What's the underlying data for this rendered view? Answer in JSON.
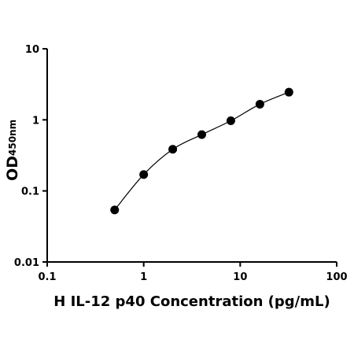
{
  "chart_data": {
    "type": "scatter",
    "x_label": "H IL-12 p40 Concentration (pg/mL)",
    "y_label": "OD",
    "y_label_subscript": "450nm",
    "series": [
      {
        "x": [
          0.5,
          1,
          2,
          4,
          8,
          16,
          32
        ],
        "values": [
          0.054,
          0.17,
          0.385,
          0.62,
          0.97,
          1.66,
          2.45
        ],
        "color": "#000000"
      }
    ],
    "xlim": [
      0.1,
      100
    ],
    "xticks": [
      0.1,
      1,
      10,
      100
    ],
    "ylim": [
      0.01,
      10
    ],
    "yticks": [
      0.01,
      0.1,
      1,
      10
    ],
    "xscale": "log",
    "yscale": "log",
    "grid": false,
    "fit_curve": true
  }
}
